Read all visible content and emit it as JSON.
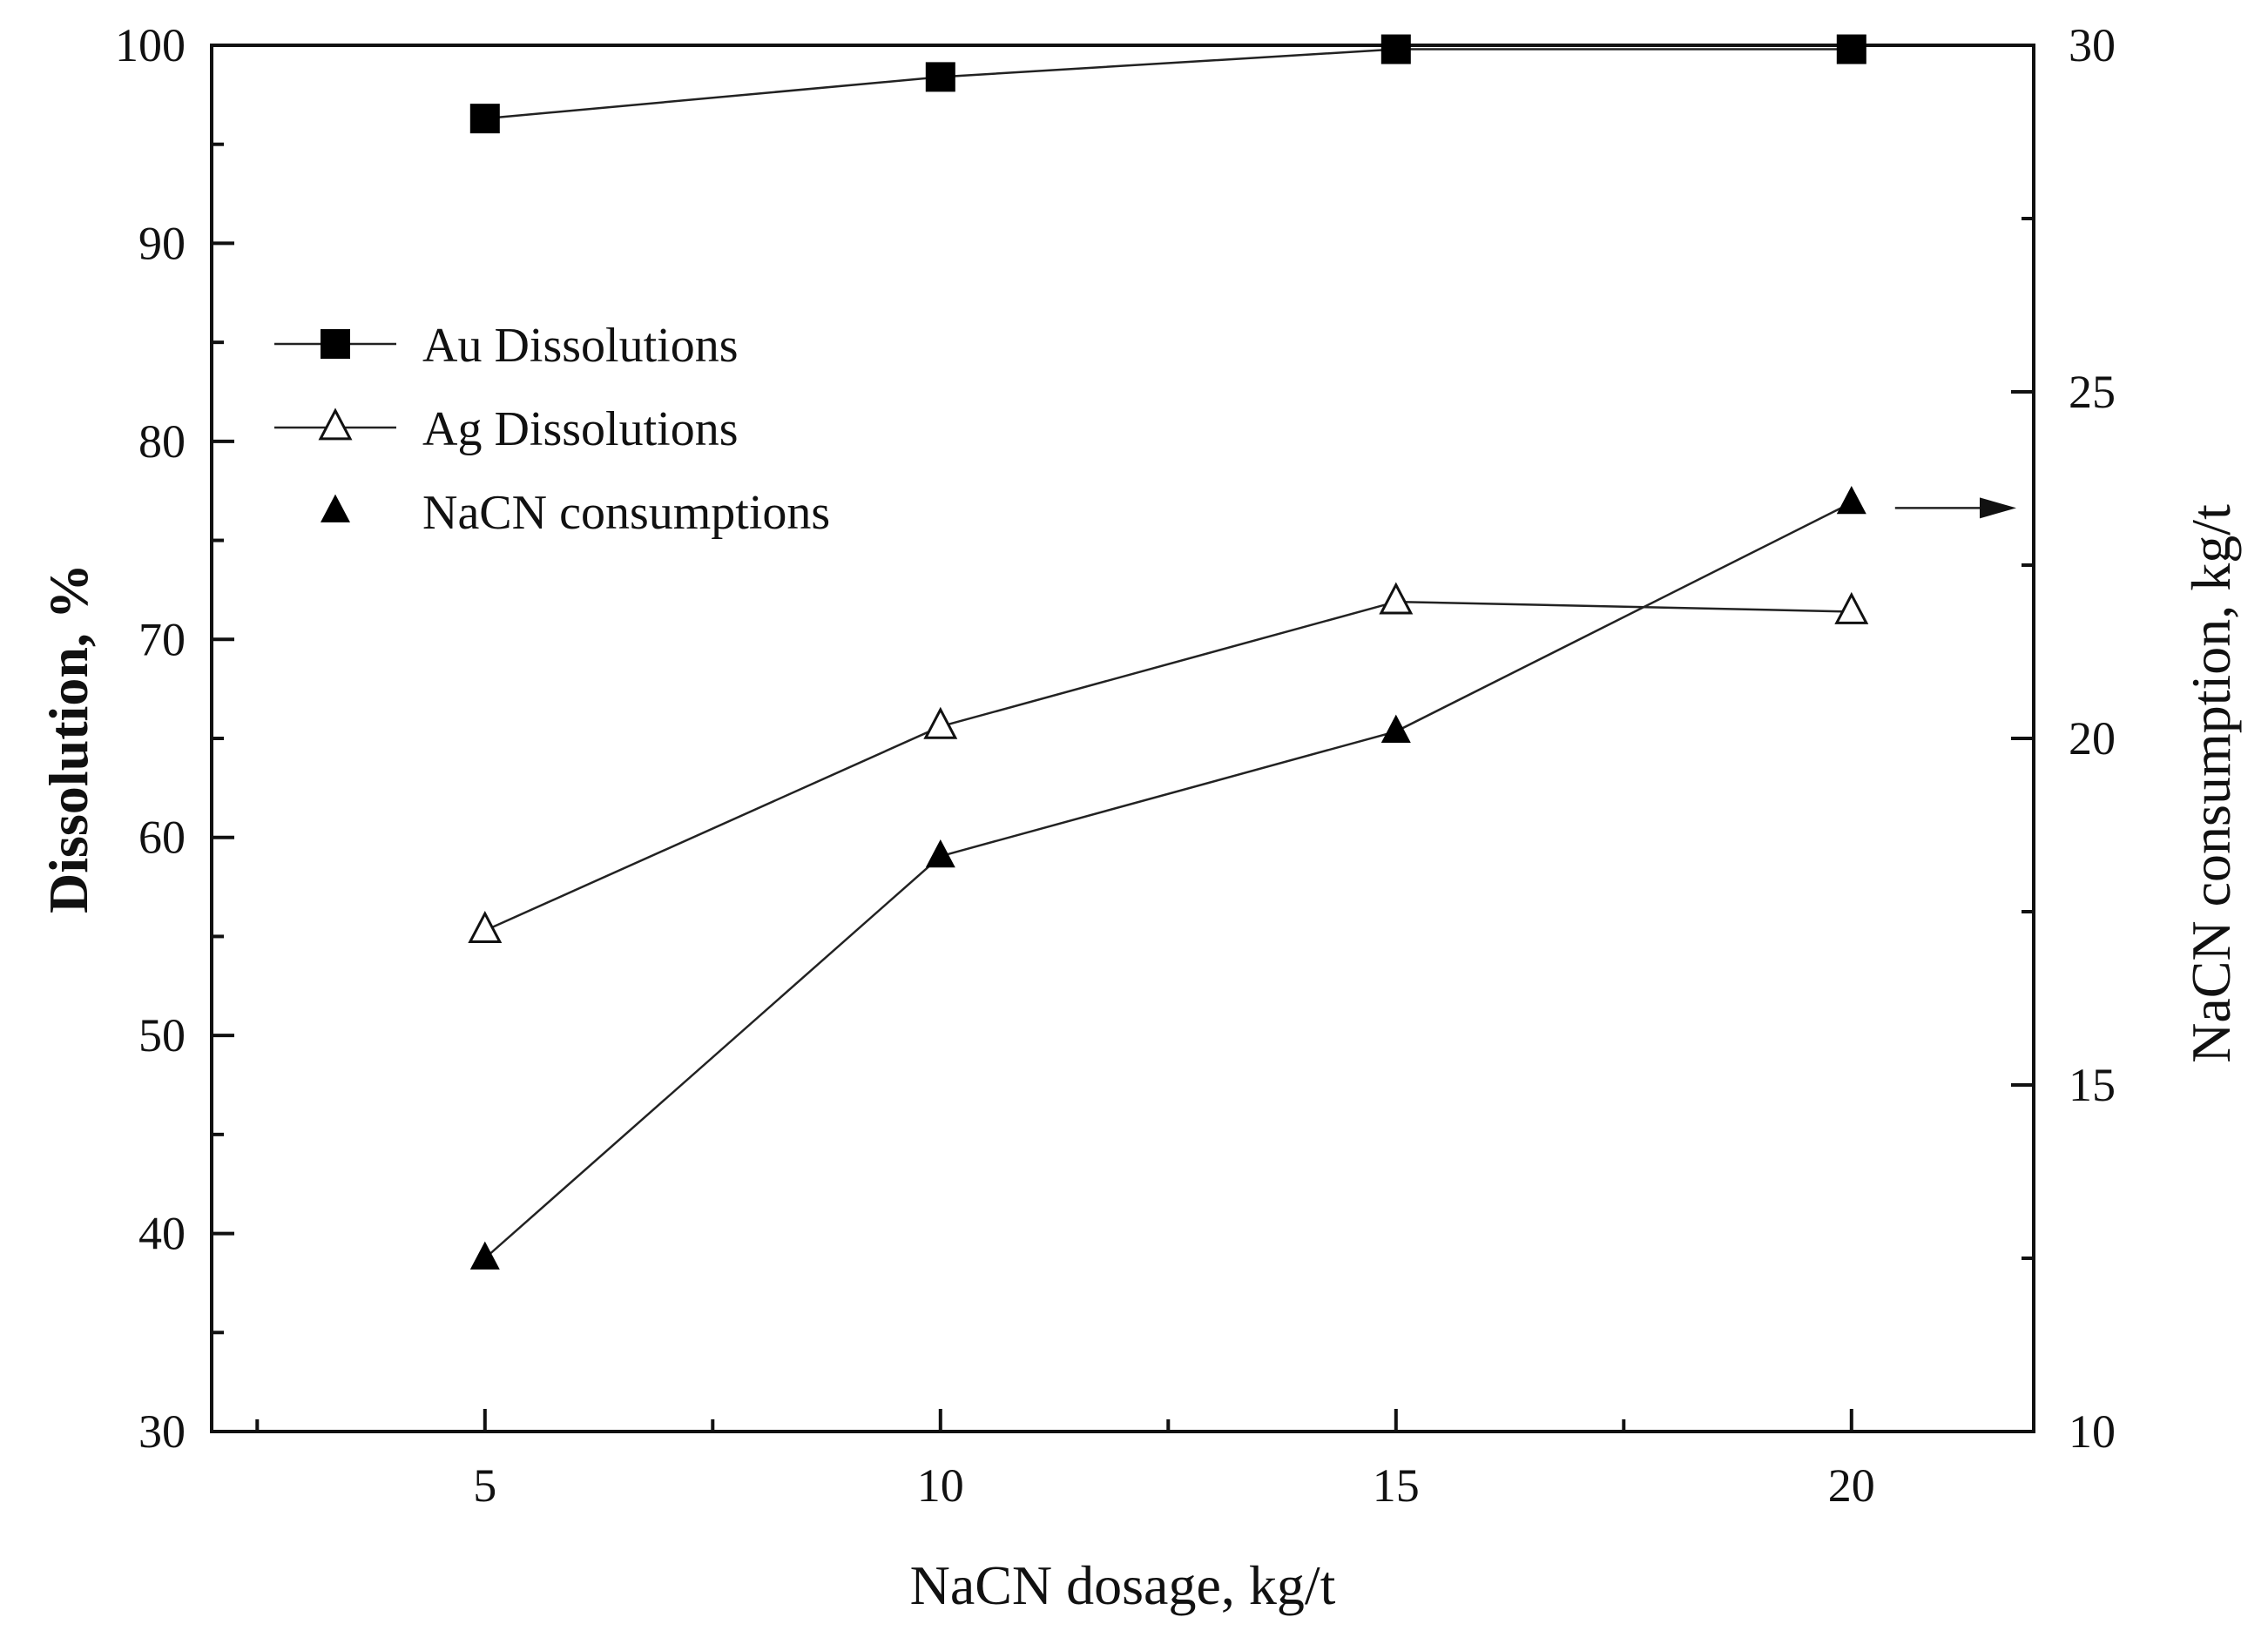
{
  "chart_data": {
    "type": "line",
    "xlabel": "NaCN dosage, kg/t",
    "ylabel": "Dissolution, %",
    "y2label": "NaCN consumption, kg/t",
    "xlim": [
      2,
      22
    ],
    "ylim": [
      30,
      100
    ],
    "y2lim": [
      10,
      30
    ],
    "x_ticks": [
      5,
      10,
      15,
      20
    ],
    "y_ticks": [
      30,
      40,
      50,
      60,
      70,
      80,
      90,
      100
    ],
    "y2_ticks": [
      10,
      15,
      20,
      25,
      30
    ],
    "x": [
      5,
      10,
      15,
      20
    ],
    "series": [
      {
        "name": "Au Dissolutions",
        "axis": "left",
        "marker": "square-filled",
        "values": [
          96.3,
          98.4,
          99.8,
          99.8
        ]
      },
      {
        "name": "Ag Dissolutions",
        "axis": "left",
        "marker": "triangle-open",
        "values": [
          55.3,
          65.6,
          71.9,
          71.4
        ]
      },
      {
        "name": "NaCN consumptions",
        "axis": "right",
        "marker": "triangle-filled",
        "values": [
          12.5,
          18.3,
          20.1,
          23.4
        ]
      }
    ],
    "annotations": [
      {
        "type": "arrow",
        "from_series": "NaCN consumptions",
        "points_to": "right-axis"
      }
    ],
    "legend": {
      "position": "upper-left",
      "entries": [
        "Au Dissolutions",
        "Ag Dissolutions",
        "NaCN consumptions"
      ]
    },
    "grid": false
  }
}
